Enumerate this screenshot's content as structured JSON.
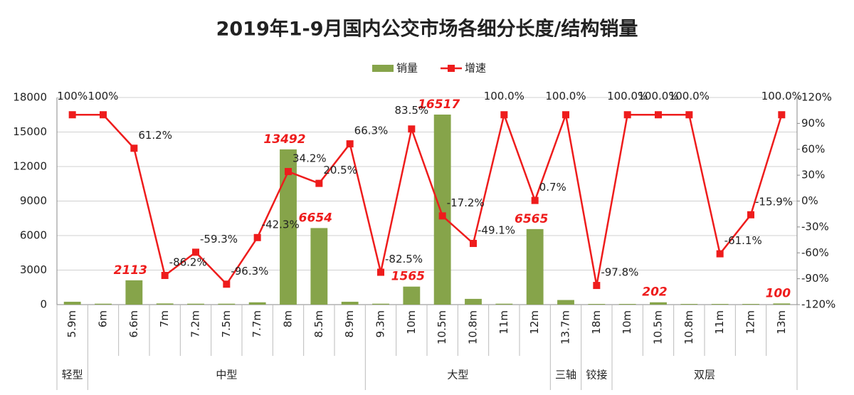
{
  "chart_data": {
    "type": "bar-line",
    "title": "2019年1-9月国内公交市场各细分长度/结构销量",
    "categories": [
      "5.9m",
      "6m",
      "6.6m",
      "7m",
      "7.2m",
      "7.5m",
      "7.7m",
      "8m",
      "8.5m",
      "8.9m",
      "9.3m",
      "10m",
      "10.5m",
      "10.8m",
      "11m",
      "12m",
      "13.7m",
      "18m",
      "10m",
      "10.5m",
      "10.8m",
      "11m",
      "12m",
      "13m"
    ],
    "groups": [
      "轻型",
      "中型",
      null,
      null,
      null,
      null,
      null,
      null,
      null,
      null,
      "大型",
      null,
      null,
      null,
      null,
      null,
      "三轴",
      "铰接",
      "双层",
      null,
      null,
      null,
      null,
      null
    ],
    "series": [
      {
        "name": "销量",
        "type": "bar",
        "color": "#86a44a",
        "values": [
          250,
          80,
          2113,
          100,
          80,
          80,
          200,
          13492,
          6654,
          250,
          80,
          1565,
          16517,
          500,
          80,
          6565,
          400,
          60,
          60,
          202,
          60,
          60,
          60,
          100
        ],
        "value_labels": [
          null,
          null,
          "2113",
          null,
          null,
          null,
          null,
          "13492",
          "6654",
          null,
          null,
          "1565",
          "16517",
          null,
          null,
          "6565",
          null,
          null,
          null,
          "202",
          null,
          null,
          null,
          "100"
        ]
      },
      {
        "name": "增速",
        "type": "line",
        "axis": "y2",
        "color": "#ee1c1c",
        "values": [
          100,
          100,
          61.2,
          -86.2,
          -59.3,
          -96.3,
          -42.3,
          34.2,
          20.5,
          66.3,
          -82.5,
          83.5,
          -17.2,
          -49.1,
          100.0,
          0.7,
          100.0,
          -97.8,
          100.0,
          100.0,
          100.0,
          -61.1,
          -15.9,
          100.0
        ],
        "value_labels": [
          "100%",
          "100%",
          "61.2%",
          "-86.2%",
          "-59.3%",
          "-96.3%",
          "-42.3%",
          "34.2%",
          "20.5%",
          "66.3%",
          "-82.5%",
          "83.5%",
          "-17.2%",
          "-49.1%",
          "100.0%",
          "0.7%",
          "100.0%",
          "-97.8%",
          "100.0%",
          "100.0%",
          "100.0%",
          "-61.1%",
          "-15.9%",
          "100.0%"
        ]
      }
    ],
    "ylim": [
      0,
      18000
    ],
    "yticks": [
      0,
      3000,
      6000,
      9000,
      12000,
      15000,
      18000
    ],
    "y2lim": [
      -120,
      120
    ],
    "y2ticks": [
      {
        "value": -120,
        "label": "-120%"
      },
      {
        "value": -90,
        "label": "-90%"
      },
      {
        "value": -60,
        "label": "-60%"
      },
      {
        "value": -30,
        "label": "-30%"
      },
      {
        "value": 0,
        "label": "0%"
      },
      {
        "value": 30,
        "label": "30%"
      },
      {
        "value": 60,
        "label": "60%"
      },
      {
        "value": 90,
        "label": "90%"
      },
      {
        "value": 120,
        "label": "120%"
      }
    ],
    "grid": true,
    "legend": "top"
  }
}
